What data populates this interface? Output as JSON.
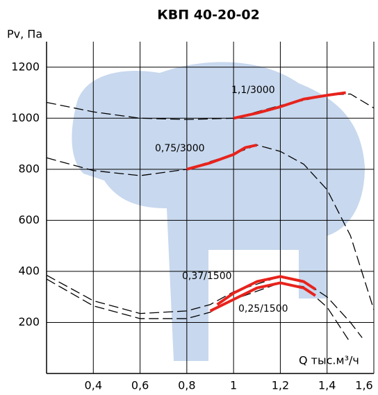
{
  "chart_data": {
    "type": "line",
    "title": "КВП 40-20-02",
    "y_label": "Pv, Па",
    "x_label": "Q тыс.м³/ч",
    "xlim": [
      0.2,
      1.6
    ],
    "ylim": [
      0,
      1300
    ],
    "xticks": [
      {
        "value": 0.4,
        "label": "0,4"
      },
      {
        "value": 0.6,
        "label": "0,6"
      },
      {
        "value": 0.8,
        "label": "0,8"
      },
      1,
      {
        "value": 1.2,
        "label": "1,2"
      },
      {
        "value": 1.4,
        "label": "1,4"
      },
      {
        "value": 1.6,
        "label": "1,6"
      }
    ],
    "yticks": [
      200,
      400,
      600,
      800,
      1000,
      1200
    ],
    "grid": true,
    "curve_color": "#000000",
    "work_color": "#e8231c",
    "series": [
      {
        "name": "1,1/3000",
        "x": [
          0.2,
          0.4,
          0.6,
          0.8,
          1.0,
          1.2,
          1.4,
          1.5,
          1.6
        ],
        "values": [
          1062,
          1025,
          1000,
          995,
          1000,
          1050,
          1090,
          1095,
          1040
        ],
        "work_x": [
          1.0,
          1.1,
          1.2,
          1.3,
          1.4,
          1.48
        ],
        "work_values": [
          1000,
          1020,
          1045,
          1075,
          1090,
          1100
        ]
      },
      {
        "name": "0,75/3000",
        "x": [
          0.2,
          0.4,
          0.6,
          0.8,
          1.0,
          1.1,
          1.2,
          1.3,
          1.4,
          1.5,
          1.6
        ],
        "values": [
          845,
          795,
          775,
          800,
          860,
          895,
          870,
          820,
          720,
          540,
          250
        ],
        "work_x": [
          0.8,
          0.9,
          1.0,
          1.05,
          1.1
        ],
        "work_values": [
          800,
          825,
          858,
          885,
          895
        ]
      },
      {
        "name": "0,37/1500",
        "x": [
          0.2,
          0.4,
          0.6,
          0.8,
          0.9,
          1.0,
          1.2,
          1.3,
          1.4,
          1.5,
          1.55
        ],
        "values": [
          385,
          285,
          235,
          245,
          270,
          320,
          380,
          360,
          300,
          200,
          140
        ],
        "work_x": [
          0.93,
          1.0,
          1.1,
          1.2,
          1.3,
          1.35
        ],
        "work_values": [
          270,
          315,
          360,
          380,
          360,
          330
        ]
      },
      {
        "name": "0,25/1500",
        "x": [
          0.2,
          0.4,
          0.6,
          0.8,
          0.9,
          1.0,
          1.2,
          1.3,
          1.4,
          1.5
        ],
        "values": [
          370,
          265,
          215,
          215,
          240,
          290,
          355,
          340,
          260,
          120
        ],
        "work_x": [
          0.9,
          1.0,
          1.1,
          1.2,
          1.3,
          1.35
        ],
        "work_values": [
          245,
          290,
          335,
          355,
          335,
          305
        ]
      }
    ]
  }
}
